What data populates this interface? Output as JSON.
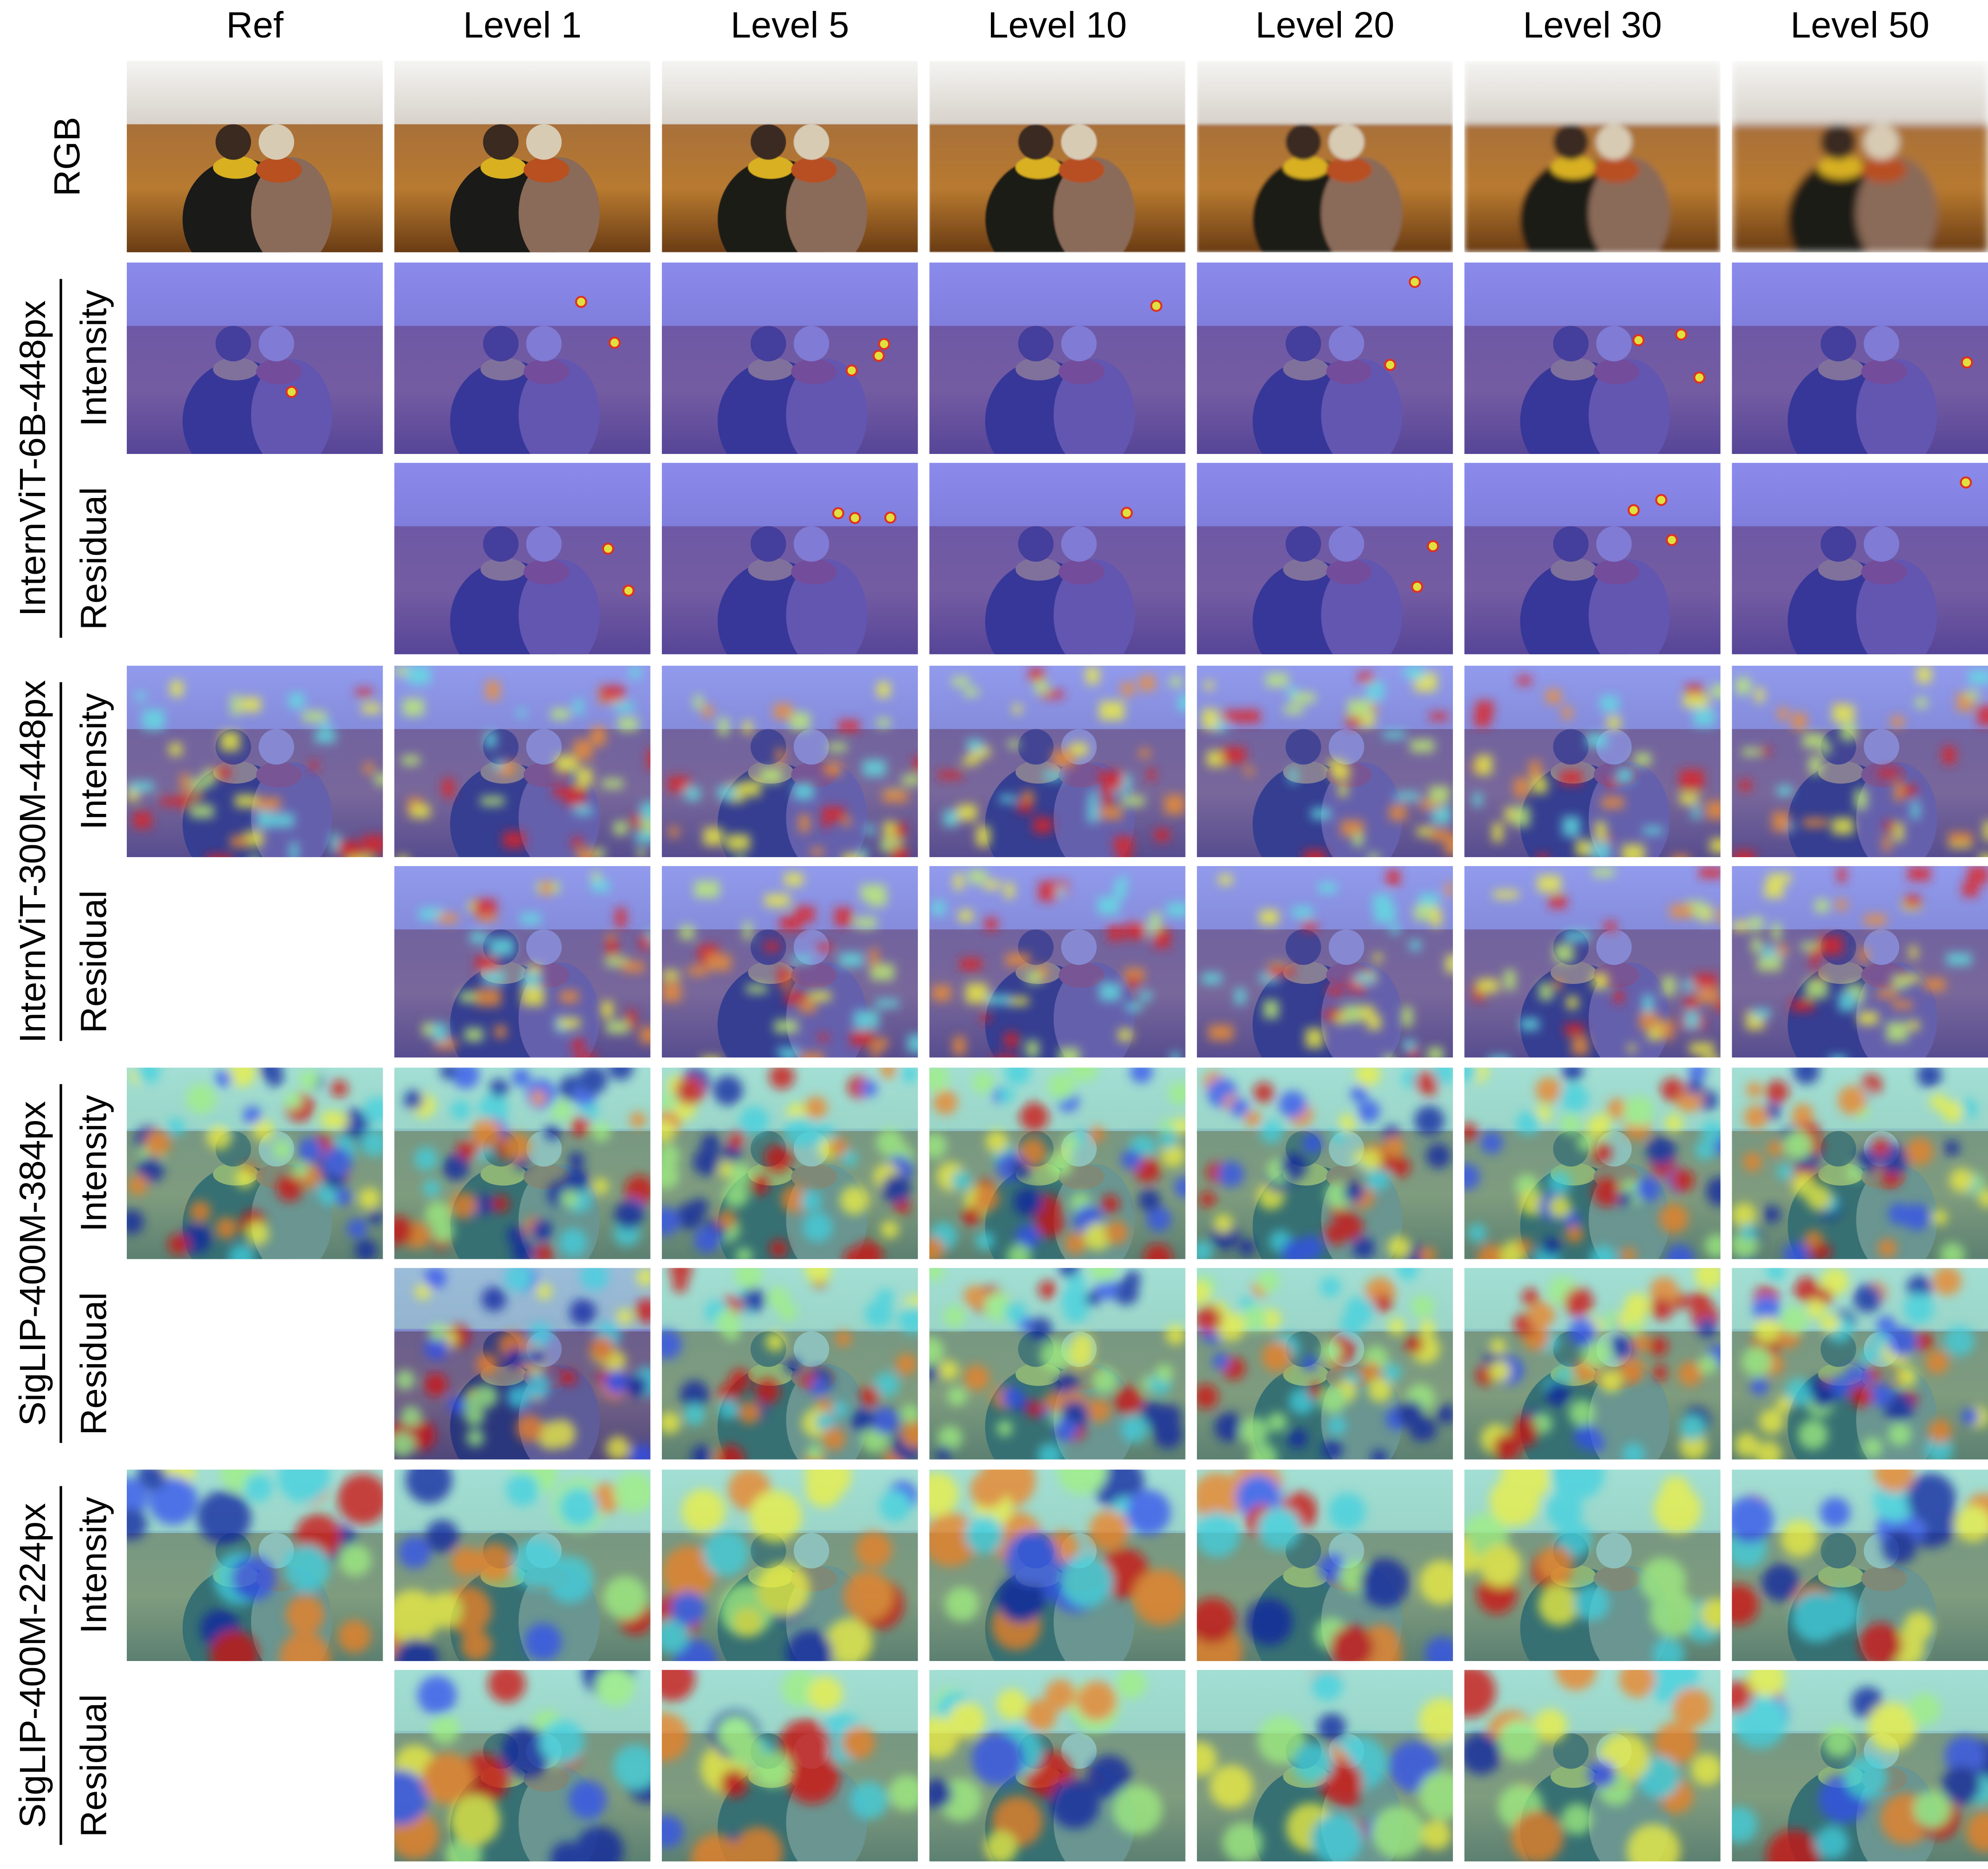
{
  "columns": [
    "Ref",
    "Level 1",
    "Level 5",
    "Level 10",
    "Level 20",
    "Level 30",
    "Level 50"
  ],
  "rgb_row": "RGB",
  "groups": [
    {
      "name": "InternViT-6B-448px",
      "rows": [
        "Intensity",
        "Residual"
      ]
    },
    {
      "name": "InternViT-300M-448px",
      "rows": [
        "Intensity",
        "Residual"
      ]
    },
    {
      "name": "SigLIP-400M-384px",
      "rows": [
        "Intensity",
        "Residual"
      ]
    },
    {
      "name": "SigLIP-400M-224px",
      "rows": [
        "Intensity",
        "Residual"
      ]
    }
  ]
}
